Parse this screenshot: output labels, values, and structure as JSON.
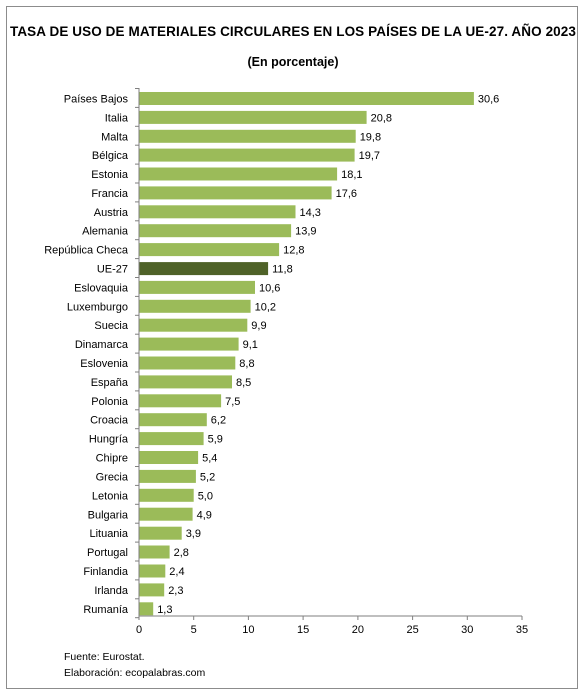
{
  "title": "TASA DE USO DE MATERIALES CIRCULARES EN LOS PAÍSES DE LA UE-27. AÑO 2023",
  "subtitle": "(En porcentaje)",
  "source": "Fuente: Eurostat.",
  "credit": "Elaboración: ecopalabras.com",
  "colors": {
    "bar": "#9bbb59",
    "highlight": "#4f6228",
    "axis": "#7f7f7f",
    "text": "#000000"
  },
  "chart_data": {
    "type": "bar",
    "orientation": "horizontal",
    "categories": [
      "Países Bajos",
      "Italia",
      "Malta",
      "Bélgica",
      "Estonia",
      "Francia",
      "Austria",
      "Alemania",
      "República Checa",
      "UE-27",
      "Eslovaquia",
      "Luxemburgo",
      "Suecia",
      "Dinamarca",
      "Eslovenia",
      "España",
      "Polonia",
      "Croacia",
      "Hungría",
      "Chipre",
      "Grecia",
      "Letonia",
      "Bulgaria",
      "Lituania",
      "Portugal",
      "Finlandia",
      "Irlanda",
      "Rumanía"
    ],
    "values": [
      30.6,
      20.8,
      19.8,
      19.7,
      18.1,
      17.6,
      14.3,
      13.9,
      12.8,
      11.8,
      10.6,
      10.2,
      9.9,
      9.1,
      8.8,
      8.5,
      7.5,
      6.2,
      5.9,
      5.4,
      5.2,
      5.0,
      4.9,
      3.9,
      2.8,
      2.4,
      2.3,
      1.3
    ],
    "value_labels": [
      "30,6",
      "20,8",
      "19,8",
      "19,7",
      "18,1",
      "17,6",
      "14,3",
      "13,9",
      "12,8",
      "11,8",
      "10,6",
      "10,2",
      "9,9",
      "9,1",
      "8,8",
      "8,5",
      "7,5",
      "6,2",
      "5,9",
      "5,4",
      "5,2",
      "5,0",
      "4,9",
      "3,9",
      "2,8",
      "2,4",
      "2,3",
      "1,3"
    ],
    "highlight_category": "UE-27",
    "xlim": [
      0,
      35
    ],
    "xticks": [
      0,
      5,
      10,
      15,
      20,
      25,
      30,
      35
    ],
    "xlabel": "",
    "ylabel": "",
    "grid": false,
    "legend": "none"
  }
}
